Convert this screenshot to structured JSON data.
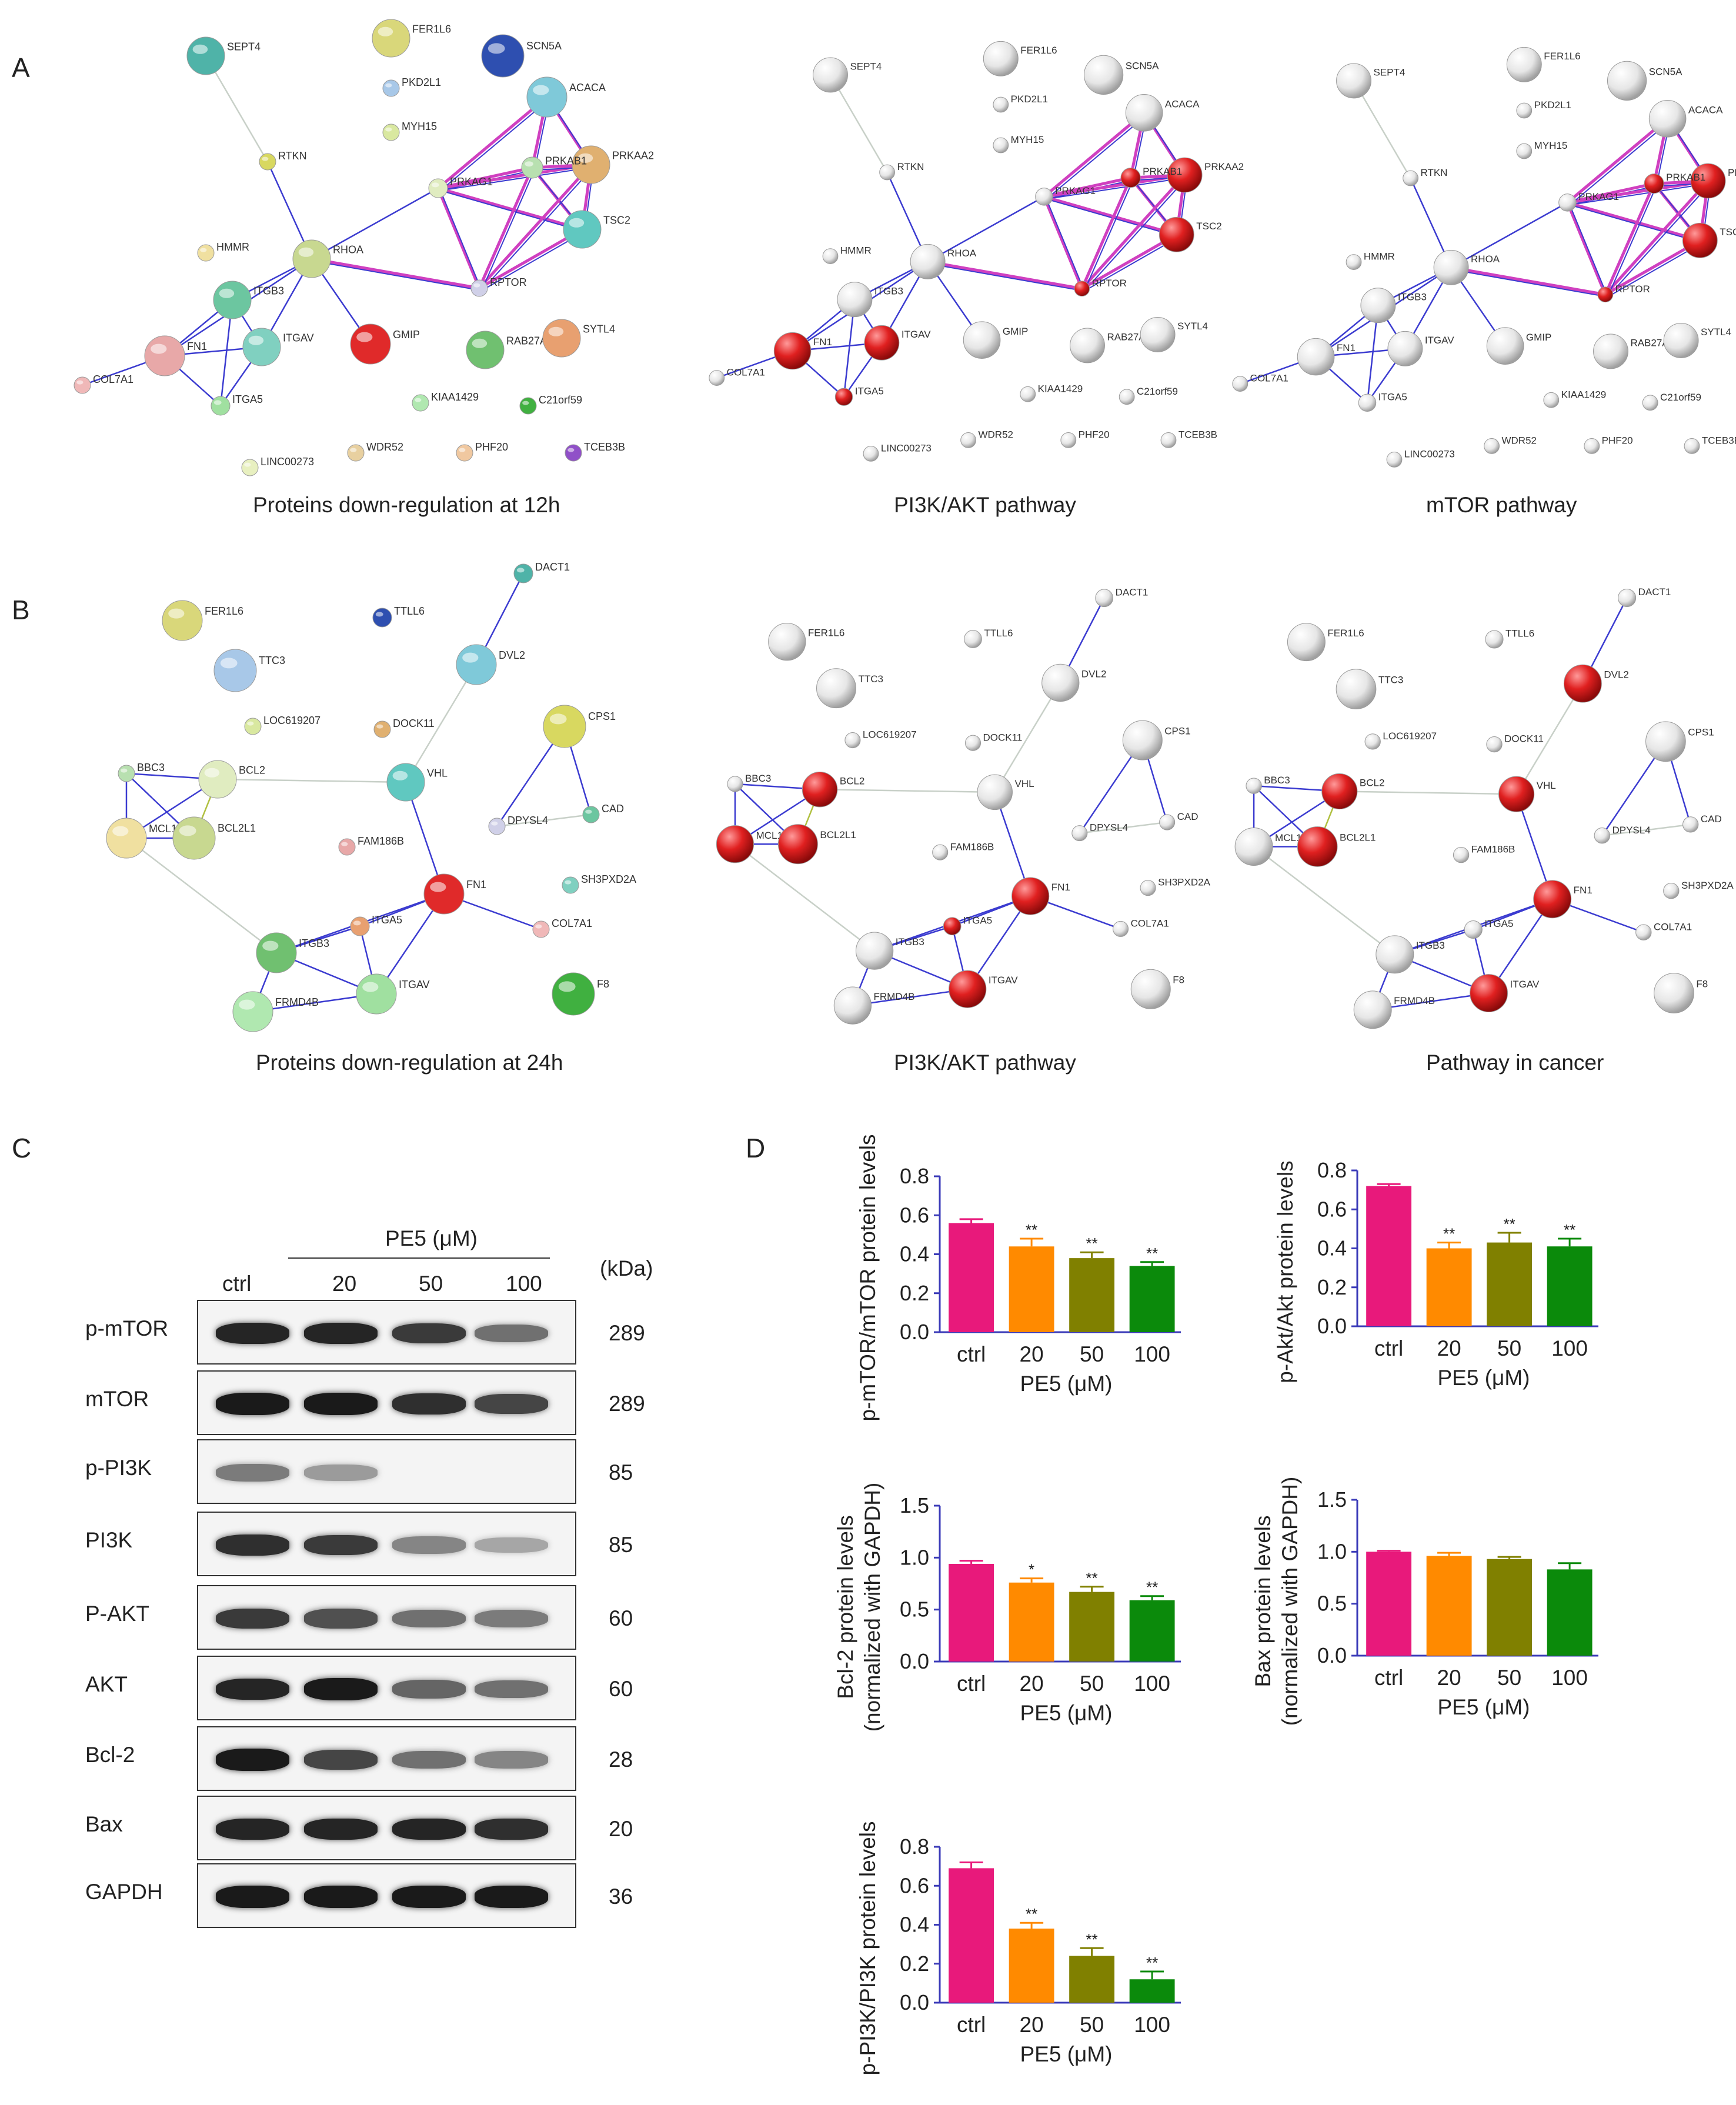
{
  "panels": {
    "A": {
      "letter": "A",
      "captions": [
        "Proteins down-regulation  at 12h",
        "PI3K/AKT pathway",
        "mTOR pathway"
      ],
      "nodes": [
        "SEPT4",
        "FER1L6",
        "SCN5A",
        "PKD2L1",
        "ACACA",
        "MYH15",
        "PRKAA2",
        "RTKN",
        "PRKAB1",
        "PRKAG1",
        "TSC2",
        "HMMR",
        "RHOA",
        "RPTOR",
        "ITGB3",
        "FN1",
        "ITGAV",
        "GMIP",
        "RAB27A",
        "SYTL4",
        "COL7A1",
        "ITGA5",
        "KIAA1429",
        "C21orf59",
        "LINC00273",
        "WDR52",
        "PHF20",
        "TCEB3B"
      ]
    },
    "B": {
      "letter": "B",
      "captions": [
        "Proteins down-regulation at 24h",
        "PI3K/AKT pathway",
        "Pathway in cancer"
      ],
      "nodes": [
        "DACT1",
        "FER1L6",
        "TTLL6",
        "TTC3",
        "DVL2",
        "LOC619207",
        "DOCK11",
        "CPS1",
        "BBC3",
        "BCL2",
        "VHL",
        "MCL1",
        "BCL2L1",
        "DPYSL4",
        "CAD",
        "FAM186B",
        "SH3PXD2A",
        "FN1",
        "ITGB3",
        "ITGA5",
        "COL7A1",
        "ITGAV",
        "FRMD4B",
        "F8"
      ]
    },
    "C": {
      "letter": "C",
      "treatment": "PE5 (μM)",
      "lanes": [
        "ctrl",
        "20",
        "50",
        "100"
      ],
      "kda_header": "(kDa)",
      "rows": [
        {
          "label": "p-mTOR",
          "kda": "289",
          "intensity": [
            0.9,
            0.9,
            0.8,
            0.55
          ]
        },
        {
          "label": "mTOR",
          "kda": "289",
          "intensity": [
            0.95,
            0.95,
            0.85,
            0.75
          ]
        },
        {
          "label": "p-PI3K",
          "kda": "85",
          "intensity": [
            0.5,
            0.35,
            0.0,
            0.0
          ]
        },
        {
          "label": "PI3K",
          "kda": "85",
          "intensity": [
            0.85,
            0.8,
            0.45,
            0.3
          ]
        },
        {
          "label": "P-AKT",
          "kda": "60",
          "intensity": [
            0.8,
            0.7,
            0.55,
            0.5
          ]
        },
        {
          "label": "AKT",
          "kda": "60",
          "intensity": [
            0.9,
            0.95,
            0.6,
            0.55
          ]
        },
        {
          "label": "Bcl-2",
          "kda": "28",
          "intensity": [
            0.95,
            0.75,
            0.55,
            0.45
          ]
        },
        {
          "label": "Bax",
          "kda": "20",
          "intensity": [
            0.9,
            0.9,
            0.9,
            0.85
          ]
        },
        {
          "label": "GAPDH",
          "kda": "36",
          "intensity": [
            0.95,
            0.95,
            0.95,
            0.95
          ]
        }
      ]
    },
    "D": {
      "letter": "D"
    }
  },
  "colors": {
    "ctrl": "#e8197b",
    "c20": "#ff8a00",
    "c50": "#808000",
    "c100": "#0b8a0b",
    "network_edge": "#3b3bd0",
    "network_pink": "#d040c0"
  },
  "chart_data": [
    {
      "type": "bar",
      "id": "p-mTOR",
      "categories": [
        "ctrl",
        "20",
        "50",
        "100"
      ],
      "values": [
        0.56,
        0.44,
        0.38,
        0.34
      ],
      "errors": [
        0.02,
        0.04,
        0.03,
        0.02
      ],
      "sig": [
        "",
        "**",
        "**",
        "**"
      ],
      "ylabel": "p-mTOR/mTOR protein levels",
      "xlabel": "PE5 (μM)",
      "ylim": [
        0,
        0.8
      ],
      "ticks": [
        "0.0",
        "0.2",
        "0.4",
        "0.6",
        "0.8"
      ]
    },
    {
      "type": "bar",
      "id": "p-Akt",
      "categories": [
        "ctrl",
        "20",
        "50",
        "100"
      ],
      "values": [
        0.72,
        0.4,
        0.43,
        0.41
      ],
      "errors": [
        0.01,
        0.03,
        0.05,
        0.04
      ],
      "sig": [
        "",
        "**",
        "**",
        "**"
      ],
      "ylabel": "p-Akt/Akt protein levels",
      "xlabel": "PE5 (μM)",
      "ylim": [
        0,
        0.8
      ],
      "ticks": [
        "0.0",
        "0.2",
        "0.4",
        "0.6",
        "0.8"
      ]
    },
    {
      "type": "bar",
      "id": "Bcl-2",
      "categories": [
        "ctrl",
        "20",
        "50",
        "100"
      ],
      "values": [
        0.94,
        0.76,
        0.67,
        0.59
      ],
      "errors": [
        0.03,
        0.04,
        0.05,
        0.04
      ],
      "sig": [
        "",
        "*",
        "**",
        "**"
      ],
      "ylabel": "Bcl-2 protein levels",
      "ylabel2": "(normalized with GAPDH)",
      "xlabel": "PE5 (μM)",
      "ylim": [
        0,
        1.5
      ],
      "ticks": [
        "0.0",
        "0.5",
        "1.0",
        "1.5"
      ]
    },
    {
      "type": "bar",
      "id": "Bax",
      "categories": [
        "ctrl",
        "20",
        "50",
        "100"
      ],
      "values": [
        1.0,
        0.96,
        0.93,
        0.83
      ],
      "errors": [
        0.01,
        0.03,
        0.02,
        0.06
      ],
      "sig": [
        "",
        "",
        "",
        ""
      ],
      "ylabel": "Bax protein levels",
      "ylabel2": "(normalized with GAPDH)",
      "xlabel": "PE5 (μM)",
      "ylim": [
        0,
        1.5
      ],
      "ticks": [
        "0.0",
        "0.5",
        "1.0",
        "1.5"
      ]
    },
    {
      "type": "bar",
      "id": "p-PI3K",
      "categories": [
        "ctrl",
        "20",
        "50",
        "100"
      ],
      "values": [
        0.69,
        0.38,
        0.24,
        0.12
      ],
      "errors": [
        0.03,
        0.03,
        0.04,
        0.04
      ],
      "sig": [
        "",
        "**",
        "**",
        "**"
      ],
      "ylabel": "p-PI3K/PI3K protein levels",
      "xlabel": "PE5 (μM)",
      "ylim": [
        0,
        0.8
      ],
      "ticks": [
        "0.0",
        "0.2",
        "0.4",
        "0.6",
        "0.8"
      ]
    }
  ]
}
